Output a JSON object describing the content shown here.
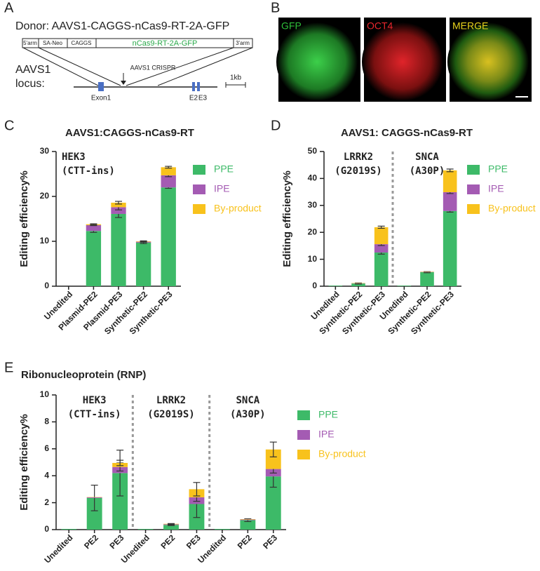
{
  "panel_labels": [
    "A",
    "B",
    "C",
    "D",
    "E"
  ],
  "donor_diagram": {
    "title": "Donor: AAVS1-CAGGS-nCas9-RT-2A-GFP",
    "segments": [
      "5'arm",
      "SA-Neo",
      "CAGGS",
      "nCas9-RT-2A-GFP",
      "3'arm"
    ],
    "locus_label": [
      "AAVS1",
      "locus:"
    ],
    "exons": [
      "Exon1",
      "E2",
      "E3"
    ],
    "cut_label": "AAVS1 CRISPR",
    "scale_label": "1kb"
  },
  "microscopy": {
    "channels": [
      "GFP",
      "OCT4",
      "MERGE"
    ]
  },
  "chart_data": [
    {
      "type": "bar",
      "stacked": true,
      "title": "AAVS1:CAGGS-nCas9-RT",
      "ylabel": "Editing efficiency%",
      "categories": [
        "Unedited",
        "Plasmid-PE2",
        "Plasmid-PE3",
        "Synthetic-PE2",
        "Synthetic-PE3"
      ],
      "groups": [
        [
          "HEK3",
          "(CTT-ins)"
        ]
      ],
      "series": [
        {
          "name": "PPE",
          "color": "#3dba68",
          "values": [
            0,
            12.3,
            16.1,
            9.7,
            22.0
          ],
          "errors": [
            0,
            0.3,
            0.8,
            0.2,
            0.2
          ]
        },
        {
          "name": "IPE",
          "color": "#a45bb3",
          "values": [
            0,
            1.3,
            1.5,
            0.2,
            2.7
          ],
          "errors": [
            0,
            0.1,
            0.6,
            0.1,
            0.3
          ]
        },
        {
          "name": "By-product",
          "color": "#f8c21c",
          "values": [
            0,
            0.2,
            1.0,
            0.1,
            1.8
          ],
          "errors": [
            0,
            0.1,
            0.3,
            0.1,
            0.2
          ]
        }
      ],
      "ylim": [
        0,
        30
      ],
      "yticks": [
        0,
        10,
        20,
        30
      ],
      "legend": "right"
    },
    {
      "type": "bar",
      "stacked": true,
      "title": "AAVS1: CAGGS-nCas9-RT",
      "ylabel": "Editing efficiency%",
      "categories": [
        "Unedited",
        "Synthetic-PE2",
        "Synthetic-PE3",
        "Unedited",
        "Synthetic-PE2",
        "Synthetic-PE3"
      ],
      "groups": [
        [
          "LRRK2",
          "(G2019S)"
        ],
        [
          "SNCA",
          "(A30P)"
        ]
      ],
      "series": [
        {
          "name": "PPE",
          "color": "#3dba68",
          "values": [
            0.2,
            1.0,
            12.5,
            0.2,
            5.2,
            27.9
          ],
          "errors": [
            0,
            0.2,
            0.6,
            0,
            0.2,
            0.4
          ]
        },
        {
          "name": "IPE",
          "color": "#a45bb3",
          "values": [
            0,
            0.1,
            3.1,
            0,
            0.1,
            7.0
          ],
          "errors": [
            0,
            0,
            0.5,
            0,
            0,
            0.5
          ]
        },
        {
          "name": "By-product",
          "color": "#f8c21c",
          "values": [
            0,
            0.1,
            6.3,
            0,
            0.1,
            8.1
          ],
          "errors": [
            0,
            0,
            0.4,
            0,
            0,
            0.5
          ]
        }
      ],
      "ylim": [
        0,
        50
      ],
      "yticks": [
        0,
        10,
        20,
        30,
        40,
        50
      ],
      "legend": "right"
    },
    {
      "type": "bar",
      "stacked": true,
      "title": "Ribonucleoprotein (RNP)",
      "ylabel": "Editing efficiency%",
      "categories": [
        "Unedited",
        "PE2",
        "PE3",
        "Unedited",
        "PE2",
        "PE3",
        "Unedited",
        "PE2",
        "PE3"
      ],
      "groups": [
        [
          "HEK3",
          "(CTT-ins)"
        ],
        [
          "LRRK2",
          "(G2019S)"
        ],
        [
          "SNCA",
          "(A30P)"
        ]
      ],
      "series": [
        {
          "name": "PPE",
          "color": "#3dba68",
          "values": [
            0.05,
            2.35,
            4.2,
            0.05,
            0.35,
            1.9,
            0.05,
            0.7,
            3.95
          ],
          "errors": [
            0,
            0.95,
            1.7,
            0,
            0.05,
            1.0,
            0,
            0.1,
            0.8
          ]
        },
        {
          "name": "IPE",
          "color": "#a45bb3",
          "values": [
            0,
            0.05,
            0.45,
            0,
            0.05,
            0.5,
            0,
            0.05,
            0.55
          ],
          "errors": [
            0,
            0,
            0.3,
            0,
            0.03,
            0.3,
            0,
            0,
            0.3
          ]
        },
        {
          "name": "By-product",
          "color": "#f8c21c",
          "values": [
            0,
            0.02,
            0.3,
            0,
            0.03,
            0.6,
            0,
            0.03,
            1.45
          ],
          "errors": [
            0,
            0,
            0.2,
            0,
            0.02,
            0.5,
            0,
            0,
            0.55
          ]
        }
      ],
      "ylim": [
        0,
        10
      ],
      "yticks": [
        0,
        2,
        4,
        6,
        8,
        10
      ],
      "legend": "right"
    }
  ]
}
